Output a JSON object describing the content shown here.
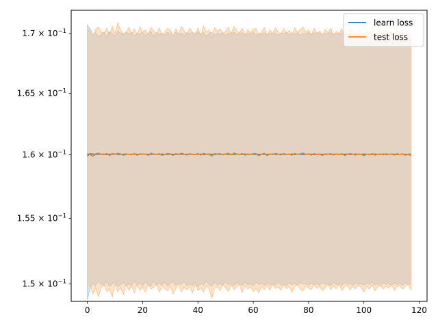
{
  "chart_data": {
    "type": "line",
    "title": "",
    "xlabel": "",
    "ylabel": "",
    "y_scale": "log",
    "xlim": [
      -5.85,
      122.85
    ],
    "ylim": [
      0.1487,
      0.172
    ],
    "grid": false,
    "legend_placement": "top-right",
    "x_ticks": [
      0,
      20,
      40,
      60,
      80,
      100,
      120
    ],
    "x_tick_labels": [
      "0",
      "20",
      "40",
      "60",
      "80",
      "100",
      "120"
    ],
    "y_ticks": [
      0.15,
      0.155,
      0.16,
      0.165,
      0.17
    ],
    "y_tick_labels": [
      {
        "mantissa": "1.5",
        "base": "10",
        "exp": "−1"
      },
      {
        "mantissa": "1.55",
        "base": "10",
        "exp": "−1"
      },
      {
        "mantissa": "1.6",
        "base": "10",
        "exp": "−1"
      },
      {
        "mantissa": "1.65",
        "base": "10",
        "exp": "−1"
      },
      {
        "mantissa": "1.7",
        "base": "10",
        "exp": "−1"
      }
    ],
    "x_start": 0,
    "x_end": 117,
    "series": [
      {
        "name": "learn loss",
        "color": "#1f77b4",
        "band_color": "#9ecae9",
        "mean": [
          0.15993,
          0.16009,
          0.16006,
          0.16004,
          0.16007,
          0.16005,
          0.16006,
          0.16003,
          0.16004,
          0.16007,
          0.16006,
          0.16005,
          0.16004,
          0.16005,
          0.16006,
          0.16004,
          0.16005,
          0.16006,
          0.16005,
          0.16004,
          0.16006,
          0.16005,
          0.16004,
          0.16005,
          0.16006,
          0.16004,
          0.16005,
          0.16006,
          0.16004,
          0.16005,
          0.16006,
          0.16005,
          0.16004,
          0.16005,
          0.16006,
          0.16004,
          0.16005,
          0.16006,
          0.16005,
          0.16004,
          0.16006,
          0.16005,
          0.16004,
          0.16005,
          0.16006,
          0.16004,
          0.16005,
          0.16006,
          0.16005,
          0.16004,
          0.16006,
          0.16005,
          0.16004,
          0.16005,
          0.16006,
          0.16004,
          0.16005,
          0.16006,
          0.16005,
          0.16004,
          0.16006,
          0.16005,
          0.16004,
          0.16005,
          0.16006,
          0.16004,
          0.16005,
          0.16006,
          0.16005,
          0.16004,
          0.16006,
          0.16005,
          0.16004,
          0.16005,
          0.16006,
          0.16004,
          0.16005,
          0.16006,
          0.16005,
          0.16004,
          0.16006,
          0.16005,
          0.16004,
          0.16005,
          0.16006,
          0.16004,
          0.16005,
          0.16006,
          0.16005,
          0.16004,
          0.16006,
          0.16005,
          0.16004,
          0.16005,
          0.16006,
          0.16004,
          0.16005,
          0.16006,
          0.16005,
          0.16004,
          0.16006,
          0.16005,
          0.16004,
          0.16005,
          0.16006,
          0.16004,
          0.16005,
          0.16006,
          0.16005,
          0.16004,
          0.16006,
          0.16005,
          0.16004,
          0.16005,
          0.16006,
          0.16004,
          0.16005,
          0.16006
        ],
        "upper": [
          0.17071,
          0.1704,
          0.16993,
          0.17011,
          0.1697,
          0.16996,
          0.17013,
          0.16976,
          0.17018,
          0.17002,
          0.16981,
          0.17022,
          0.17006,
          0.16987,
          0.17015,
          0.16998,
          0.17011,
          0.1698,
          0.17008,
          0.16993,
          0.17013,
          0.16985,
          0.17004,
          0.17017,
          0.16978,
          0.17009,
          0.16994,
          0.17006,
          0.16986,
          0.17013,
          0.16999,
          0.16983,
          0.17012,
          0.16996,
          0.17004,
          0.16982,
          0.1701,
          0.16998,
          0.17012,
          0.16987,
          0.1702,
          0.16997,
          0.17009,
          0.16979,
          0.17003,
          0.17014,
          0.16988,
          0.17008,
          0.16996,
          0.17011,
          0.16985,
          0.17005,
          0.16998,
          0.17013,
          0.16989,
          0.17002,
          0.17009,
          0.16984,
          0.17006,
          0.16998,
          0.17012,
          0.16987,
          0.17005,
          0.16995,
          0.1701,
          0.16991,
          0.17003,
          0.16998,
          0.17008,
          0.16986,
          0.17006,
          0.16999,
          0.17011,
          0.1699,
          0.17004,
          0.16996,
          0.17009,
          0.16987,
          0.17002,
          0.16998,
          0.1701,
          0.16991,
          0.17005,
          0.16997,
          0.17008,
          0.1699,
          0.17003,
          0.16998,
          0.17012,
          0.16986,
          0.17005,
          0.16996,
          0.1701,
          0.16989,
          0.17002,
          0.16997,
          0.17009,
          0.16991,
          0.17004,
          0.16998,
          0.17008,
          0.16993,
          0.17003,
          0.16985,
          0.17006,
          0.16998,
          0.17011,
          0.1699,
          0.17002,
          0.16997,
          0.17008,
          0.16992,
          0.17004,
          0.16995,
          0.17009,
          0.1699,
          0.17003,
          0.16998
        ],
        "lower": [
          0.14882,
          0.14968,
          0.15004,
          0.14985,
          0.1502,
          0.14997,
          0.14985,
          0.15021,
          0.14981,
          0.14998,
          0.15018,
          0.1498,
          0.14995,
          0.15013,
          0.14986,
          0.15002,
          0.14989,
          0.15019,
          0.14992,
          0.15007,
          0.14985,
          0.15014,
          0.14996,
          0.14982,
          0.15019,
          0.14989,
          0.15005,
          0.14993,
          0.15014,
          0.14986,
          0.15001,
          0.15016,
          0.14988,
          0.15004,
          0.14995,
          0.15017,
          0.14989,
          0.15001,
          0.14987,
          0.15012,
          0.14976,
          0.15003,
          0.1499,
          0.1502,
          0.14996,
          0.14984,
          0.15012,
          0.14991,
          0.15003,
          0.14988,
          0.15014,
          0.14994,
          0.15001,
          0.14986,
          0.1501,
          0.14997,
          0.14989,
          0.15015,
          0.14993,
          0.15001,
          0.14987,
          0.15012,
          0.14994,
          0.15004,
          0.14989,
          0.15008,
          0.14996,
          0.15001,
          0.14991,
          0.15013,
          0.14993,
          0.15,
          0.14988,
          0.15009,
          0.14995,
          0.15003,
          0.1499,
          0.15012,
          0.14997,
          0.15001,
          0.14989,
          0.15008,
          0.14994,
          0.15002,
          0.14991,
          0.15009,
          0.14996,
          0.15001,
          0.14987,
          0.15013,
          0.14994,
          0.15003,
          0.14989,
          0.1501,
          0.14997,
          0.15002,
          0.1499,
          0.15008,
          0.14995,
          0.15001,
          0.14991,
          0.15006,
          0.14996,
          0.15014,
          0.14993,
          0.15001,
          0.14988,
          0.15009,
          0.14997,
          0.15002,
          0.14991,
          0.15007,
          0.14995,
          0.15004,
          0.1499,
          0.15009,
          0.14996,
          0.15001
        ]
      },
      {
        "name": "test loss",
        "color": "#ff7f0e",
        "band_color": "#ffbf86",
        "mean": [
          0.16011,
          0.16003,
          0.15988,
          0.16009,
          0.16014,
          0.16005,
          0.16002,
          0.16011,
          0.15994,
          0.16012,
          0.16003,
          0.16013,
          0.16008,
          0.15998,
          0.16003,
          0.16006,
          0.16001,
          0.16011,
          0.15997,
          0.16009,
          0.16004,
          0.16007,
          0.15996,
          0.16014,
          0.16005,
          0.16003,
          0.1601,
          0.15997,
          0.16004,
          0.16012,
          0.16008,
          0.15996,
          0.16011,
          0.16002,
          0.16014,
          0.16006,
          0.15999,
          0.1601,
          0.16003,
          0.16004,
          0.16011,
          0.15998,
          0.16013,
          0.16005,
          0.16007,
          0.15989,
          0.16012,
          0.16006,
          0.16011,
          0.16001,
          0.16007,
          0.16013,
          0.16,
          0.16015,
          0.16007,
          0.16003,
          0.16012,
          0.15998,
          0.16008,
          0.16004,
          0.1601,
          0.16011,
          0.15994,
          0.16006,
          0.16013,
          0.15995,
          0.16008,
          0.16002,
          0.16012,
          0.16005,
          0.16,
          0.16011,
          0.16003,
          0.16007,
          0.15998,
          0.16012,
          0.16004,
          0.16009,
          0.16014,
          0.16005,
          0.16008,
          0.15998,
          0.16011,
          0.16003,
          0.16006,
          0.15996,
          0.16009,
          0.16004,
          0.16011,
          0.15999,
          0.16006,
          0.16002,
          0.1601,
          0.15996,
          0.16004,
          0.16011,
          0.16006,
          0.15999,
          0.16008,
          0.16004,
          0.15994,
          0.16006,
          0.16001,
          0.16012,
          0.15998,
          0.16005,
          0.16008,
          0.16001,
          0.1601,
          0.16004,
          0.16006,
          0.15999,
          0.1601,
          0.16004,
          0.16007,
          0.15998,
          0.16005,
          0.15993
        ],
        "upper": [
          0.17031,
          0.17018,
          0.1697,
          0.17038,
          0.17056,
          0.17014,
          0.17001,
          0.17048,
          0.16986,
          0.17064,
          0.17003,
          0.17091,
          0.17032,
          0.16995,
          0.17015,
          0.17052,
          0.16998,
          0.17038,
          0.16981,
          0.1706,
          0.17012,
          0.17031,
          0.16987,
          0.17054,
          0.1702,
          0.17004,
          0.17048,
          0.16989,
          0.17016,
          0.17044,
          0.17033,
          0.16981,
          0.1704,
          0.16996,
          0.17061,
          0.17024,
          0.16993,
          0.17046,
          0.17011,
          0.17002,
          0.17049,
          0.16978,
          0.17068,
          0.17013,
          0.1703,
          0.1696,
          0.17052,
          0.1702,
          0.17041,
          0.16998,
          0.17021,
          0.17055,
          0.16996,
          0.17063,
          0.17025,
          0.17005,
          0.17047,
          0.16989,
          0.17033,
          0.17008,
          0.1704,
          0.17044,
          0.1698,
          0.17017,
          0.17053,
          0.16984,
          0.17032,
          0.17002,
          0.17049,
          0.17015,
          0.16996,
          0.17042,
          0.17005,
          0.17028,
          0.16992,
          0.1705,
          0.17009,
          0.17035,
          0.17056,
          0.17014,
          0.17031,
          0.16994,
          0.17043,
          0.17004,
          0.17022,
          0.16986,
          0.17037,
          0.17008,
          0.17045,
          0.16991,
          0.1702,
          0.17002,
          0.17041,
          0.16985,
          0.1701,
          0.17047,
          0.17018,
          0.16993,
          0.17036,
          0.17008,
          0.16981,
          0.17024,
          0.17001,
          0.17051,
          0.1699,
          0.17016,
          0.17033,
          0.16999,
          0.17042,
          0.17009,
          0.17021,
          0.16995,
          0.1704,
          0.17007,
          0.17027,
          0.16989,
          0.17014,
          0.16983
        ],
        "lower": [
          0.1499,
          0.14987,
          0.14925,
          0.14971,
          0.14905,
          0.14968,
          0.15001,
          0.14943,
          0.14962,
          0.14903,
          0.14999,
          0.14942,
          0.14974,
          0.14919,
          0.14997,
          0.14953,
          0.14989,
          0.14935,
          0.14998,
          0.14952,
          0.14978,
          0.14941,
          0.14996,
          0.14962,
          0.14976,
          0.14999,
          0.14938,
          0.14987,
          0.14963,
          0.14948,
          0.14985,
          0.14927,
          0.14968,
          0.14996,
          0.1494,
          0.14977,
          0.14958,
          0.14984,
          0.14932,
          0.14995,
          0.14951,
          0.14973,
          0.14939,
          0.14989,
          0.14962,
          0.14894,
          0.14968,
          0.14978,
          0.14949,
          0.14996,
          0.1497,
          0.14943,
          0.14995,
          0.14957,
          0.14976,
          0.14998,
          0.14936,
          0.14987,
          0.14962,
          0.1498,
          0.14943,
          0.14969,
          0.14931,
          0.14984,
          0.14957,
          0.14991,
          0.14954,
          0.14996,
          0.14967,
          0.14978,
          0.14953,
          0.14992,
          0.14965,
          0.14981,
          0.14939,
          0.14978,
          0.14996,
          0.14961,
          0.14948,
          0.14983,
          0.1497,
          0.14958,
          0.14993,
          0.14968,
          0.14982,
          0.1495,
          0.14973,
          0.14996,
          0.14957,
          0.14986,
          0.14962,
          0.14999,
          0.14951,
          0.14976,
          0.1499,
          0.14955,
          0.1498,
          0.14964,
          0.14992,
          0.14971,
          0.14941,
          0.14983,
          0.14962,
          0.14995,
          0.14948,
          0.14977,
          0.1499,
          0.1496,
          0.14983,
          0.14968,
          0.14994,
          0.14952,
          0.14978,
          0.14989,
          0.14961,
          0.14982,
          0.14996,
          0.14955
        ]
      }
    ]
  }
}
